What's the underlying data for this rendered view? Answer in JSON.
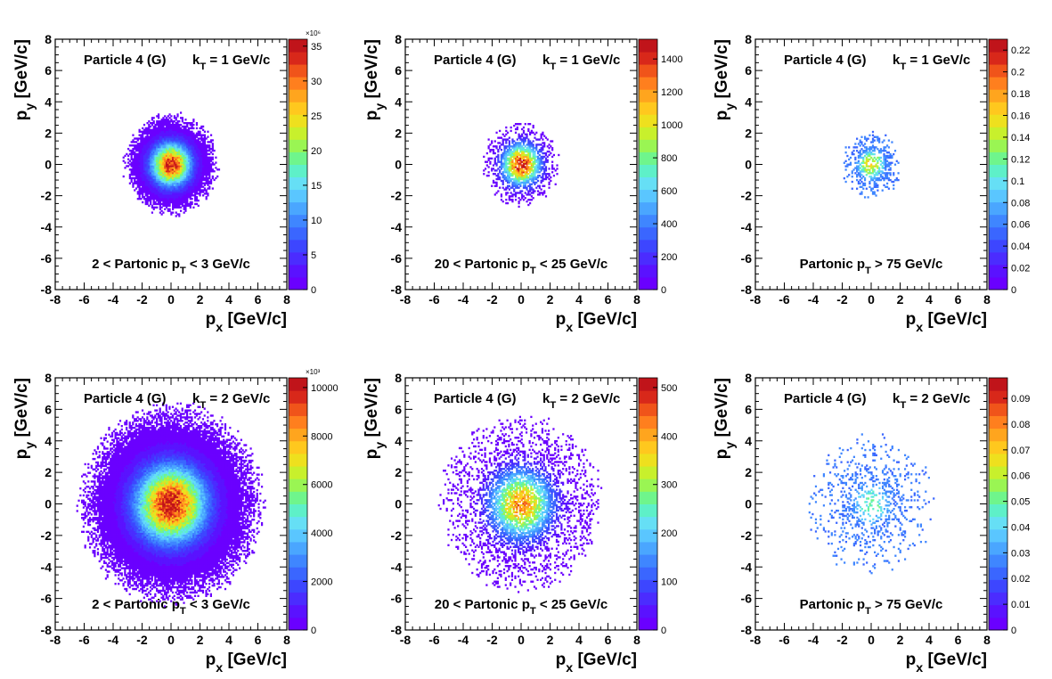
{
  "chart_data": [
    {
      "type": "heatmap",
      "title": "Particle 4 (G)",
      "kt": {
        "label": "k",
        "sub": "T",
        "value": " = 1 GeV/c"
      },
      "cut": {
        "pre": "2 < Partonic p",
        "sub": "T",
        "post": " < 3 GeV/c"
      },
      "xlabel": {
        "main": "p",
        "sub": "x",
        "unit": " [GeV/c]"
      },
      "ylabel": {
        "main": "p",
        "sub": "y",
        "unit": " [GeV/c]"
      },
      "xlim": [
        -8,
        8
      ],
      "ylim": [
        -8,
        8
      ],
      "xticks": [
        "-8",
        "-6",
        "-4",
        "-2",
        "0",
        "2",
        "4",
        "6",
        "8"
      ],
      "yticks": [
        "-8",
        "-6",
        "-4",
        "-2",
        "0",
        "2",
        "4",
        "6",
        "8"
      ],
      "zlim": [
        0,
        36
      ],
      "zticks": [
        "0",
        "5",
        "10",
        "15",
        "20",
        "25",
        "30",
        "35"
      ],
      "zticks_values": [
        0,
        5,
        10,
        15,
        20,
        25,
        30,
        35
      ],
      "zexp": "×10⁶",
      "distribution": {
        "center": [
          0,
          0
        ],
        "sigma": 0.9,
        "extent": 3.4,
        "peak": 34,
        "density": 1.0
      }
    },
    {
      "type": "heatmap",
      "title": "Particle 4 (G)",
      "kt": {
        "label": "k",
        "sub": "T",
        "value": " = 1 GeV/c"
      },
      "cut": {
        "pre": "20 < Partonic p",
        "sub": "T",
        "post": " < 25 GeV/c"
      },
      "xlabel": {
        "main": "p",
        "sub": "x",
        "unit": " [GeV/c]"
      },
      "ylabel": {
        "main": "p",
        "sub": "y",
        "unit": " [GeV/c]"
      },
      "xlim": [
        -8,
        8
      ],
      "ylim": [
        -8,
        8
      ],
      "xticks": [
        "-8",
        "-6",
        "-4",
        "-2",
        "0",
        "2",
        "4",
        "6",
        "8"
      ],
      "yticks": [
        "-8",
        "-6",
        "-4",
        "-2",
        "0",
        "2",
        "4",
        "6",
        "8"
      ],
      "zlim": [
        0,
        1520
      ],
      "zticks": [
        "0",
        "200",
        "400",
        "600",
        "800",
        "1000",
        "1200",
        "1400"
      ],
      "zticks_values": [
        0,
        200,
        400,
        600,
        800,
        1000,
        1200,
        1400
      ],
      "zexp": "",
      "distribution": {
        "center": [
          0,
          0
        ],
        "sigma": 0.85,
        "extent": 2.8,
        "peak": 1450,
        "density": 0.85
      }
    },
    {
      "type": "heatmap",
      "title": "Particle 4 (G)",
      "kt": {
        "label": "k",
        "sub": "T",
        "value": " = 1 GeV/c"
      },
      "cut": {
        "pre": "Partonic p",
        "sub": "T",
        "post": " > 75 GeV/c"
      },
      "xlabel": {
        "main": "p",
        "sub": "x",
        "unit": " [GeV/c]"
      },
      "ylabel": {
        "main": "p",
        "sub": "y",
        "unit": " [GeV/c]"
      },
      "xlim": [
        -8,
        8
      ],
      "ylim": [
        -8,
        8
      ],
      "xticks": [
        "-8",
        "-6",
        "-4",
        "-2",
        "0",
        "2",
        "4",
        "6",
        "8"
      ],
      "yticks": [
        "-8",
        "-6",
        "-4",
        "-2",
        "0",
        "2",
        "4",
        "6",
        "8"
      ],
      "zlim": [
        0,
        0.23
      ],
      "zticks": [
        "0",
        "0.02",
        "0.04",
        "0.06",
        "0.08",
        "0.1",
        "0.12",
        "0.14",
        "0.16",
        "0.18",
        "0.2",
        "0.22"
      ],
      "zticks_values": [
        0,
        0.02,
        0.04,
        0.06,
        0.08,
        0.1,
        0.12,
        0.14,
        0.16,
        0.18,
        0.2,
        0.22
      ],
      "zexp": "",
      "distribution": {
        "center": [
          0,
          0
        ],
        "sigma": 0.75,
        "extent": 2.2,
        "peak": 0.16,
        "density": 0.55
      }
    },
    {
      "type": "heatmap",
      "title": "Particle 4 (G)",
      "kt": {
        "label": "k",
        "sub": "T",
        "value": " = 2 GeV/c"
      },
      "cut": {
        "pre": "2 < Partonic p",
        "sub": "T",
        "post": " < 3 GeV/c"
      },
      "xlabel": {
        "main": "p",
        "sub": "x",
        "unit": " [GeV/c]"
      },
      "ylabel": {
        "main": "p",
        "sub": "y",
        "unit": " [GeV/c]"
      },
      "xlim": [
        -8,
        8
      ],
      "ylim": [
        -8,
        8
      ],
      "xticks": [
        "-8",
        "-6",
        "-4",
        "-2",
        "0",
        "2",
        "4",
        "6",
        "8"
      ],
      "yticks": [
        "-8",
        "-6",
        "-4",
        "-2",
        "0",
        "2",
        "4",
        "6",
        "8"
      ],
      "zlim": [
        0,
        10400
      ],
      "zticks": [
        "0",
        "2000",
        "4000",
        "6000",
        "8000",
        "10000"
      ],
      "zticks_values": [
        0,
        2000,
        4000,
        6000,
        8000,
        10000
      ],
      "zexp": "×10³",
      "distribution": {
        "center": [
          0,
          0
        ],
        "sigma": 1.6,
        "extent": 6.6,
        "peak": 10000,
        "density": 1.0
      }
    },
    {
      "type": "heatmap",
      "title": "Particle 4 (G)",
      "kt": {
        "label": "k",
        "sub": "T",
        "value": " = 2 GeV/c"
      },
      "cut": {
        "pre": "20 < Partonic p",
        "sub": "T",
        "post": " < 25 GeV/c"
      },
      "xlabel": {
        "main": "p",
        "sub": "x",
        "unit": " [GeV/c]"
      },
      "ylabel": {
        "main": "p",
        "sub": "y",
        "unit": " [GeV/c]"
      },
      "xlim": [
        -8,
        8
      ],
      "ylim": [
        -8,
        8
      ],
      "xticks": [
        "-8",
        "-6",
        "-4",
        "-2",
        "0",
        "2",
        "4",
        "6",
        "8"
      ],
      "yticks": [
        "-8",
        "-6",
        "-4",
        "-2",
        "0",
        "2",
        "4",
        "6",
        "8"
      ],
      "zlim": [
        0,
        520
      ],
      "zticks": [
        "0",
        "100",
        "200",
        "300",
        "400",
        "500"
      ],
      "zticks_values": [
        0,
        100,
        200,
        300,
        400,
        500
      ],
      "zexp": "",
      "distribution": {
        "center": [
          0,
          0
        ],
        "sigma": 1.4,
        "extent": 5.8,
        "peak": 420,
        "density": 0.75
      }
    },
    {
      "type": "heatmap",
      "title": "Particle 4 (G)",
      "kt": {
        "label": "k",
        "sub": "T",
        "value": " = 2 GeV/c"
      },
      "cut": {
        "pre": "Partonic p",
        "sub": "T",
        "post": " > 75 GeV/c"
      },
      "xlabel": {
        "main": "p",
        "sub": "x",
        "unit": " [GeV/c]"
      },
      "ylabel": {
        "main": "p",
        "sub": "y",
        "unit": " [GeV/c]"
      },
      "xlim": [
        -8,
        8
      ],
      "ylim": [
        -8,
        8
      ],
      "xticks": [
        "-8",
        "-6",
        "-4",
        "-2",
        "0",
        "2",
        "4",
        "6",
        "8"
      ],
      "yticks": [
        "-8",
        "-6",
        "-4",
        "-2",
        "0",
        "2",
        "4",
        "6",
        "8"
      ],
      "zlim": [
        0,
        0.098
      ],
      "zticks": [
        "0",
        "0.01",
        "0.02",
        "0.03",
        "0.04",
        "0.05",
        "0.06",
        "0.07",
        "0.08",
        "0.09"
      ],
      "zticks_values": [
        0,
        0.01,
        0.02,
        0.03,
        0.04,
        0.05,
        0.06,
        0.07,
        0.08,
        0.09
      ],
      "zexp": "",
      "distribution": {
        "center": [
          0,
          0
        ],
        "sigma": 1.2,
        "extent": 4.6,
        "peak": 0.05,
        "density": 0.3
      }
    }
  ],
  "palette": [
    "#6a00ff",
    "#5a12ff",
    "#4b2cff",
    "#3d46ff",
    "#3a66ff",
    "#3f86ff",
    "#4aa6ff",
    "#5ac6ff",
    "#66dff5",
    "#5ef0c8",
    "#6ff58c",
    "#9af553",
    "#c8f02c",
    "#eee01e",
    "#ffc81e",
    "#ffa51e",
    "#ff7f1e",
    "#f0541a",
    "#d8281a",
    "#c0141a"
  ]
}
